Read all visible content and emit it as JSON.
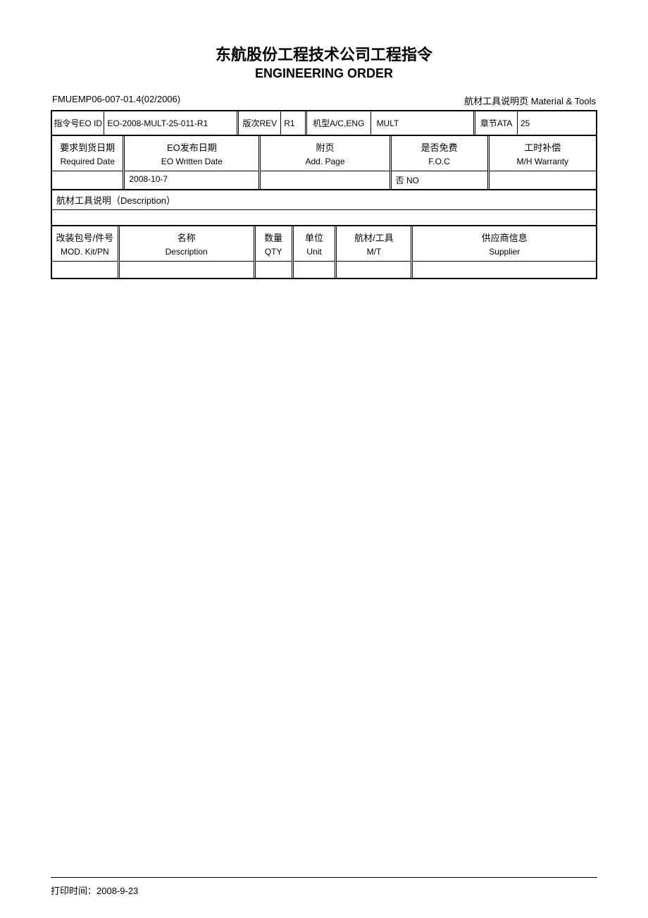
{
  "header": {
    "title_zh": "东航股份工程技术公司工程指令",
    "title_en": "ENGINEERING ORDER"
  },
  "meta": {
    "form_code": "FMUEMP06-007-01.4(02/2006)",
    "page_label": "航材工具说明页 Material & Tools"
  },
  "row1": {
    "eo_id_label": "指令号EO ID",
    "eo_id_value": "EO-2008-MULT-25-011-R1",
    "rev_label": "版次REV",
    "rev_value": "R1",
    "ac_label": "机型A/C,ENG",
    "ac_value": "MULT",
    "ata_label": "章节ATA",
    "ata_value": "25"
  },
  "row2": {
    "cols": [
      {
        "zh": "要求到货日期",
        "en": "Required Date",
        "val": ""
      },
      {
        "zh": "EO发布日期",
        "en": "EO Written Date",
        "val": "2008-10-7"
      },
      {
        "zh": "附页",
        "en": "Add. Page",
        "val": ""
      },
      {
        "zh": "是否免费",
        "en": "F.O.C",
        "val": "否 NO"
      },
      {
        "zh": "工时补偿",
        "en": "M/H Warranty",
        "val": ""
      }
    ]
  },
  "desc": {
    "label": "航材工具说明（Description）"
  },
  "row3": {
    "cols": [
      {
        "zh": "改装包号/件号",
        "en": "MOD. Kit/PN"
      },
      {
        "zh": "名称",
        "en": "Description"
      },
      {
        "zh": "数量",
        "en": "QTY"
      },
      {
        "zh": "单位",
        "en": "Unit"
      },
      {
        "zh": "航材/工具",
        "en": "M/T"
      },
      {
        "zh": "供应商信息",
        "en": "Supplier"
      }
    ]
  },
  "footer": {
    "print_label": "打印时间：",
    "print_value": "2008-9-23"
  },
  "layout": {
    "row1_widths_pct": [
      9.5,
      24.5,
      8,
      4.5,
      12,
      19,
      8,
      14.5
    ],
    "row2_widths_pct": [
      13,
      25,
      24,
      18,
      20
    ],
    "row3_widths_pct": [
      12,
      25,
      7,
      8,
      14,
      34
    ]
  }
}
